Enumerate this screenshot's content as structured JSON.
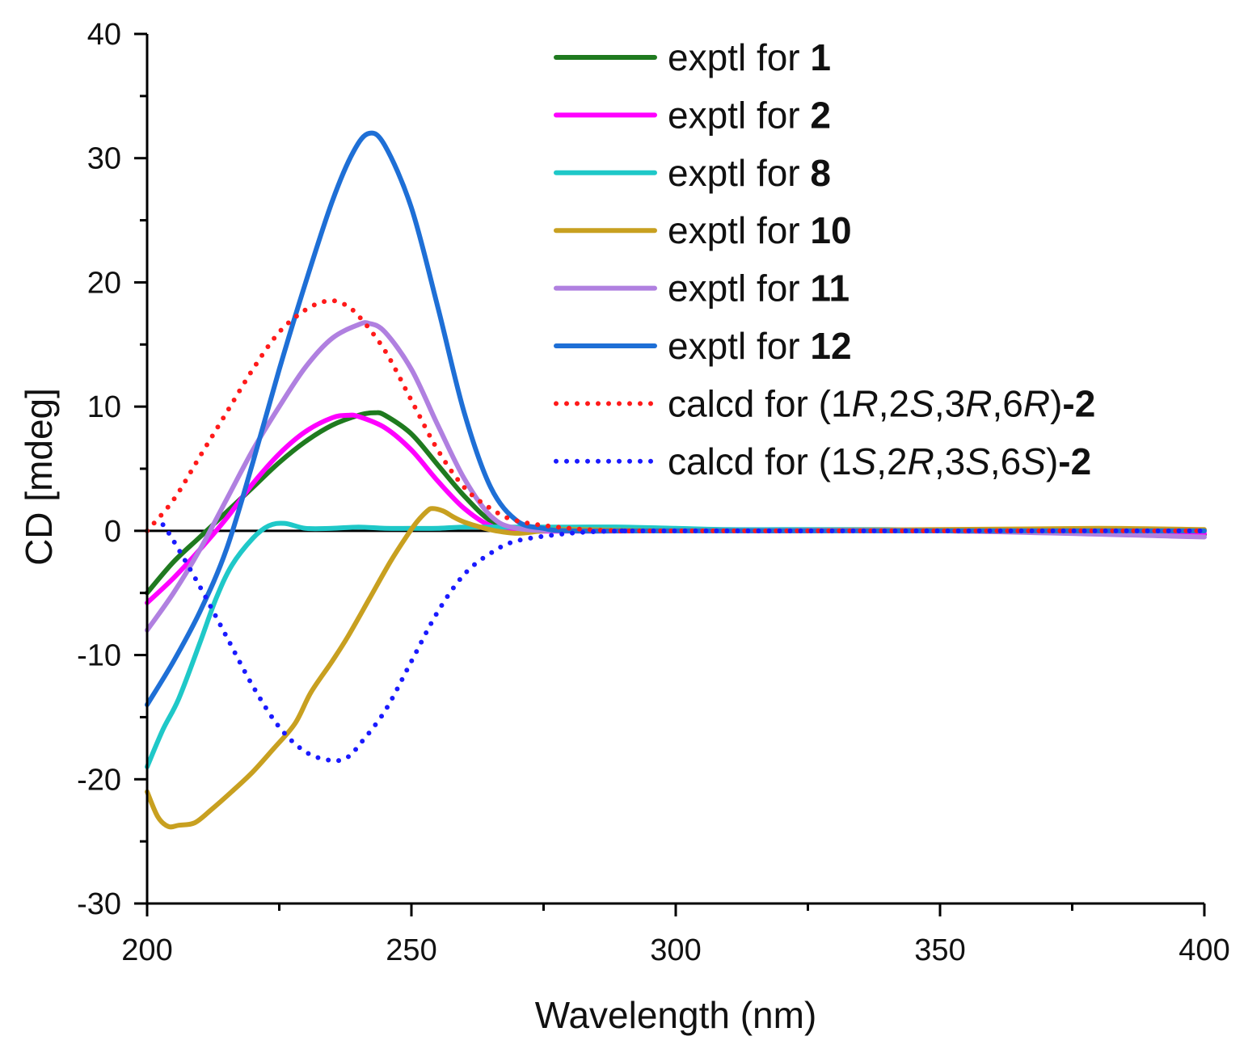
{
  "chart_data": {
    "type": "line",
    "title": "",
    "xlabel": "Wavelength (nm)",
    "ylabel": "CD [mdeg]",
    "xlim": [
      200,
      400
    ],
    "ylim": [
      -30,
      40
    ],
    "x_ticks": [
      200,
      250,
      300,
      350,
      400
    ],
    "y_ticks": [
      -30,
      -20,
      -10,
      0,
      10,
      20,
      30,
      40
    ],
    "x_tick_labels": [
      "200",
      "250",
      "300",
      "350",
      "400"
    ],
    "y_tick_labels": [
      "-30",
      "-20",
      "-10",
      "0",
      "10",
      "20",
      "30",
      "40"
    ],
    "zero_line": true,
    "legend_position": "top-right",
    "series": [
      {
        "name": "exptl for 1",
        "legend": {
          "prefix": "exptl for ",
          "parts": [
            {
              "t": "1",
              "s": "b"
            }
          ]
        },
        "color": "#1f7a1f",
        "dash": "solid",
        "points": [
          [
            200,
            -5
          ],
          [
            205,
            -2.5
          ],
          [
            210,
            -0.5
          ],
          [
            215,
            1.5
          ],
          [
            220,
            3.5
          ],
          [
            225,
            5.5
          ],
          [
            230,
            7.2
          ],
          [
            235,
            8.5
          ],
          [
            240,
            9.3
          ],
          [
            243,
            9.5
          ],
          [
            245,
            9.3
          ],
          [
            250,
            7.8
          ],
          [
            255,
            5.3
          ],
          [
            260,
            2.8
          ],
          [
            265,
            0.8
          ],
          [
            270,
            0.1
          ],
          [
            280,
            0
          ],
          [
            300,
            0
          ],
          [
            350,
            0
          ],
          [
            400,
            -0.3
          ]
        ]
      },
      {
        "name": "exptl for 2",
        "legend": {
          "prefix": "exptl for ",
          "parts": [
            {
              "t": "2",
              "s": "b"
            }
          ]
        },
        "color": "#ff00ff",
        "dash": "solid",
        "points": [
          [
            200,
            -5.8
          ],
          [
            205,
            -3.8
          ],
          [
            210,
            -1.5
          ],
          [
            215,
            1
          ],
          [
            220,
            3.8
          ],
          [
            225,
            6.2
          ],
          [
            230,
            8
          ],
          [
            235,
            9.1
          ],
          [
            238,
            9.3
          ],
          [
            240,
            9.2
          ],
          [
            245,
            8.3
          ],
          [
            250,
            6.5
          ],
          [
            255,
            4
          ],
          [
            260,
            1.8
          ],
          [
            265,
            0.4
          ],
          [
            270,
            0
          ],
          [
            300,
            0
          ],
          [
            350,
            0
          ],
          [
            400,
            -0.2
          ]
        ]
      },
      {
        "name": "exptl for 8",
        "legend": {
          "prefix": "exptl for ",
          "parts": [
            {
              "t": "8",
              "s": "b"
            }
          ]
        },
        "color": "#1fc8c8",
        "dash": "solid",
        "points": [
          [
            200,
            -19
          ],
          [
            203,
            -16
          ],
          [
            206,
            -13.5
          ],
          [
            210,
            -9
          ],
          [
            213,
            -5.5
          ],
          [
            216,
            -2.8
          ],
          [
            220,
            -0.6
          ],
          [
            223,
            0.4
          ],
          [
            226,
            0.6
          ],
          [
            230,
            0.2
          ],
          [
            235,
            0.2
          ],
          [
            240,
            0.3
          ],
          [
            245,
            0.2
          ],
          [
            250,
            0.2
          ],
          [
            255,
            0.2
          ],
          [
            260,
            0.3
          ],
          [
            270,
            0.3
          ],
          [
            280,
            0.3
          ],
          [
            290,
            0.3
          ],
          [
            300,
            0.2
          ],
          [
            310,
            0.1
          ],
          [
            320,
            0.1
          ],
          [
            330,
            0.1
          ],
          [
            340,
            0.1
          ],
          [
            350,
            0
          ],
          [
            360,
            0
          ],
          [
            380,
            0
          ],
          [
            400,
            0
          ]
        ]
      },
      {
        "name": "exptl for 10",
        "legend": {
          "prefix": "exptl for ",
          "parts": [
            {
              "t": "10",
              "s": "b"
            }
          ]
        },
        "color": "#c8a020",
        "dash": "solid",
        "points": [
          [
            200,
            -21
          ],
          [
            202,
            -23
          ],
          [
            204,
            -23.8
          ],
          [
            206,
            -23.7
          ],
          [
            209,
            -23.5
          ],
          [
            212,
            -22.5
          ],
          [
            216,
            -21
          ],
          [
            220,
            -19.4
          ],
          [
            224,
            -17.5
          ],
          [
            228,
            -15.5
          ],
          [
            231,
            -13
          ],
          [
            235,
            -10.5
          ],
          [
            238,
            -8.5
          ],
          [
            242,
            -5.5
          ],
          [
            246,
            -2.5
          ],
          [
            249,
            -0.5
          ],
          [
            251,
            0.7
          ],
          [
            253,
            1.6
          ],
          [
            254,
            1.8
          ],
          [
            256,
            1.6
          ],
          [
            258,
            1.1
          ],
          [
            260,
            0.7
          ],
          [
            263,
            0.3
          ],
          [
            266,
            0
          ],
          [
            270,
            -0.2
          ],
          [
            275,
            0
          ],
          [
            280,
            0.1
          ],
          [
            300,
            0
          ],
          [
            350,
            0.1
          ],
          [
            380,
            0.2
          ],
          [
            400,
            0.1
          ]
        ]
      },
      {
        "name": "exptl for 11",
        "legend": {
          "prefix": "exptl for ",
          "parts": [
            {
              "t": "11",
              "s": "b"
            }
          ]
        },
        "color": "#b080e0",
        "dash": "solid",
        "points": [
          [
            200,
            -8
          ],
          [
            205,
            -5
          ],
          [
            210,
            -1.5
          ],
          [
            215,
            2.5
          ],
          [
            220,
            6.5
          ],
          [
            225,
            10
          ],
          [
            230,
            13.2
          ],
          [
            235,
            15.5
          ],
          [
            240,
            16.6
          ],
          [
            242,
            16.7
          ],
          [
            245,
            16
          ],
          [
            250,
            13
          ],
          [
            255,
            8.5
          ],
          [
            260,
            4.2
          ],
          [
            265,
            1.2
          ],
          [
            270,
            0.2
          ],
          [
            280,
            0
          ],
          [
            300,
            0
          ],
          [
            350,
            0
          ],
          [
            400,
            -0.5
          ]
        ]
      },
      {
        "name": "exptl for 12",
        "legend": {
          "prefix": "exptl for ",
          "parts": [
            {
              "t": "12",
              "s": "b"
            }
          ]
        },
        "color": "#1e6fd6",
        "dash": "solid",
        "points": [
          [
            200,
            -14
          ],
          [
            205,
            -10.5
          ],
          [
            210,
            -6.5
          ],
          [
            215,
            -1.5
          ],
          [
            220,
            5.5
          ],
          [
            225,
            13
          ],
          [
            230,
            20
          ],
          [
            235,
            26.5
          ],
          [
            239,
            30.5
          ],
          [
            242,
            32
          ],
          [
            245,
            31
          ],
          [
            250,
            26
          ],
          [
            255,
            18
          ],
          [
            260,
            9.5
          ],
          [
            265,
            3.5
          ],
          [
            270,
            0.8
          ],
          [
            275,
            0.2
          ],
          [
            280,
            0
          ],
          [
            300,
            0
          ],
          [
            350,
            0
          ],
          [
            400,
            0
          ]
        ]
      },
      {
        "name": "calcd for (1R,2S,3R,6R)-2",
        "legend": {
          "prefix": "calcd for ",
          "parts": [
            {
              "t": "(1",
              "s": ""
            },
            {
              "t": "R",
              "s": "i"
            },
            {
              "t": ",2",
              "s": ""
            },
            {
              "t": "S",
              "s": "i"
            },
            {
              "t": ",3",
              "s": ""
            },
            {
              "t": "R",
              "s": "i"
            },
            {
              "t": ",6",
              "s": ""
            },
            {
              "t": "R",
              "s": "i"
            },
            {
              "t": ")",
              "s": ""
            },
            {
              "t": "-2",
              "s": "b"
            }
          ]
        },
        "color": "#ff1a1a",
        "dash": "dotted",
        "points": [
          [
            200,
            0
          ],
          [
            205,
            2.5
          ],
          [
            210,
            6
          ],
          [
            215,
            9.5
          ],
          [
            220,
            13
          ],
          [
            225,
            16
          ],
          [
            230,
            17.8
          ],
          [
            234,
            18.5
          ],
          [
            237,
            18.3
          ],
          [
            240,
            17.3
          ],
          [
            245,
            14.5
          ],
          [
            250,
            10.5
          ],
          [
            255,
            6.5
          ],
          [
            260,
            3.5
          ],
          [
            265,
            1.8
          ],
          [
            270,
            0.8
          ],
          [
            280,
            0.2
          ],
          [
            290,
            0
          ],
          [
            300,
            0
          ],
          [
            400,
            0
          ]
        ]
      },
      {
        "name": "calcd for (1S,2R,3S,6S)-2",
        "legend": {
          "prefix": "calcd for ",
          "parts": [
            {
              "t": "(1",
              "s": ""
            },
            {
              "t": "S",
              "s": "i"
            },
            {
              "t": ",2",
              "s": ""
            },
            {
              "t": "R",
              "s": "i"
            },
            {
              "t": ",3",
              "s": ""
            },
            {
              "t": "S",
              "s": "i"
            },
            {
              "t": ",6",
              "s": ""
            },
            {
              "t": "S",
              "s": "i"
            },
            {
              "t": ")",
              "s": ""
            },
            {
              "t": "-2",
              "s": "b"
            }
          ]
        },
        "color": "#1a1aff",
        "dash": "dotted",
        "points": [
          [
            203,
            0.5
          ],
          [
            205,
            -0.8
          ],
          [
            210,
            -4.5
          ],
          [
            215,
            -8.5
          ],
          [
            220,
            -12.5
          ],
          [
            225,
            -15.8
          ],
          [
            230,
            -17.8
          ],
          [
            235,
            -18.5
          ],
          [
            238,
            -18.2
          ],
          [
            240,
            -17.3
          ],
          [
            245,
            -14.5
          ],
          [
            250,
            -10.5
          ],
          [
            255,
            -6.5
          ],
          [
            260,
            -3.5
          ],
          [
            265,
            -1.8
          ],
          [
            270,
            -0.8
          ],
          [
            280,
            -0.2
          ],
          [
            290,
            0
          ],
          [
            300,
            0
          ],
          [
            400,
            0
          ]
        ]
      }
    ]
  }
}
